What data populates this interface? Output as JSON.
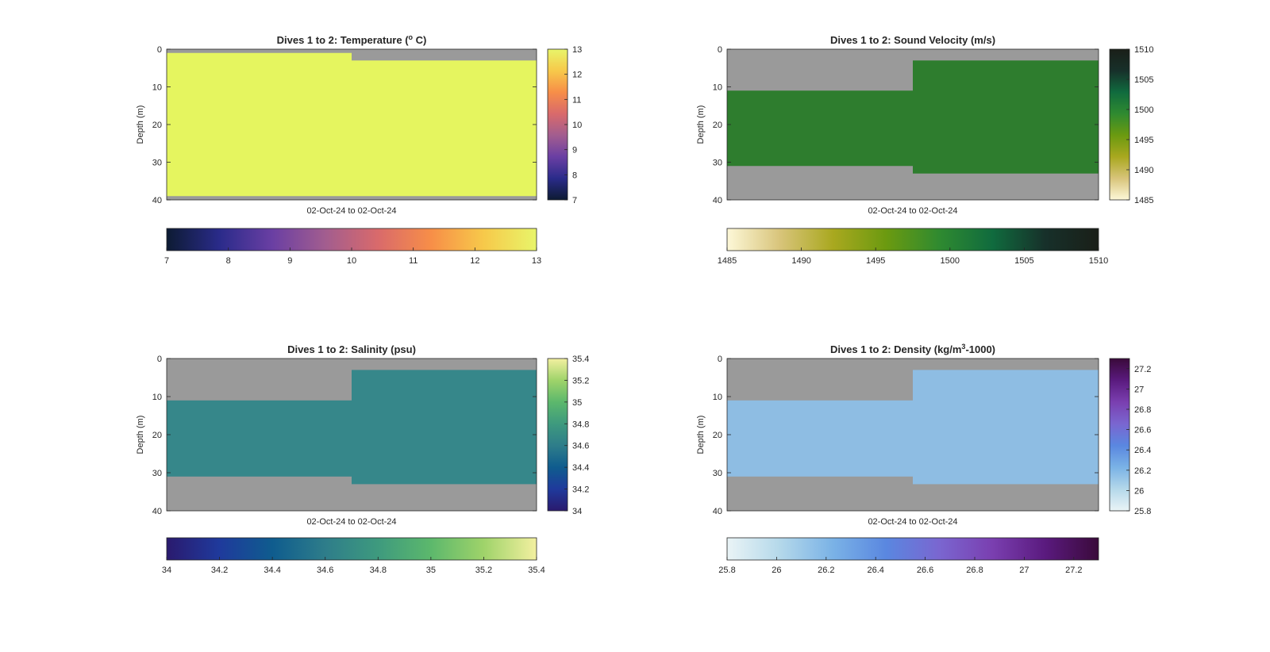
{
  "figure": {
    "background": "#ffffff"
  },
  "chart_data": [
    {
      "type": "heatmap",
      "title": "Dives 1 to 2: Temperature (°C)",
      "title_parts": {
        "pre": "Dives 1 to 2: Temperature (",
        "sup": "o",
        "post": " C)"
      },
      "xlabel": "02-Oct-24 to 02-Oct-24",
      "ylabel": "Depth (m)",
      "ylim": [
        0,
        40
      ],
      "y_ticks": [
        "0",
        "10",
        "20",
        "30",
        "40"
      ],
      "y_reversed": true,
      "missing_color": "#9a9a9a",
      "dives": [
        {
          "dive": 1,
          "depth_range": [
            1,
            39
          ],
          "value": 12.8,
          "color": "#e5f55f"
        },
        {
          "dive": 2,
          "depth_range": [
            3,
            39
          ],
          "value": 12.8,
          "color": "#e5f55f"
        }
      ],
      "colorbar": {
        "limits": [
          7,
          13
        ],
        "ticks": [
          "7",
          "8",
          "9",
          "10",
          "11",
          "12",
          "13"
        ],
        "colors": [
          "#0d1b33",
          "#2a2b8a",
          "#6a3fa3",
          "#a25d8f",
          "#d96a6b",
          "#f78e48",
          "#f7c94a",
          "#e8f56a"
        ]
      }
    },
    {
      "type": "heatmap",
      "title": "Dives 1 to 2: Sound Velocity (m/s)",
      "xlabel": "02-Oct-24 to 02-Oct-24",
      "ylabel": "Depth (m)",
      "ylim": [
        0,
        40
      ],
      "y_ticks": [
        "0",
        "10",
        "20",
        "30",
        "40"
      ],
      "y_reversed": true,
      "missing_color": "#9a9a9a",
      "dives": [
        {
          "dive": 1,
          "depth_range": [
            11,
            31
          ],
          "value": 1500.5,
          "color": "#2e7d2e"
        },
        {
          "dive": 2,
          "depth_range": [
            3,
            33
          ],
          "value": 1500.5,
          "color": "#2e7d2e"
        }
      ],
      "colorbar": {
        "limits": [
          1485,
          1510
        ],
        "ticks": [
          "1485",
          "1490",
          "1495",
          "1500",
          "1505",
          "1510"
        ],
        "colors": [
          "#fdf8d8",
          "#d8c47a",
          "#a9a81f",
          "#6b9a10",
          "#2f8a30",
          "#106b3e",
          "#17302a",
          "#1a1f18"
        ]
      }
    },
    {
      "type": "heatmap",
      "title": "Dives 1 to 2: Salinity (psu)",
      "xlabel": "02-Oct-24 to 02-Oct-24",
      "ylabel": "Depth (m)",
      "ylim": [
        0,
        40
      ],
      "y_ticks": [
        "0",
        "10",
        "20",
        "30",
        "40"
      ],
      "y_reversed": true,
      "missing_color": "#9a9a9a",
      "dives": [
        {
          "dive": 1,
          "depth_range": [
            11,
            31
          ],
          "value": 34.65,
          "color": "#36878a"
        },
        {
          "dive": 2,
          "depth_range": [
            3,
            33
          ],
          "value": 34.65,
          "color": "#36878a"
        }
      ],
      "colorbar": {
        "limits": [
          34,
          35.4
        ],
        "ticks": [
          "34",
          "34.2",
          "34.4",
          "34.6",
          "34.8",
          "35",
          "35.2",
          "35.4"
        ],
        "colors": [
          "#2a1a6e",
          "#1f3a9c",
          "#0f5c8e",
          "#2e7d8a",
          "#3e9a7e",
          "#5cb86c",
          "#9fd36a",
          "#f3f0a0"
        ]
      }
    },
    {
      "type": "heatmap",
      "title": "Dives 1 to 2: Density (kg/m³-1000)",
      "title_parts": {
        "pre": "Dives 1 to 2: Density (kg/m",
        "sup": "3",
        "post": "-1000)"
      },
      "xlabel": "02-Oct-24 to 02-Oct-24",
      "ylabel": "Depth (m)",
      "ylim": [
        0,
        40
      ],
      "y_ticks": [
        "0",
        "10",
        "20",
        "30",
        "40"
      ],
      "y_reversed": true,
      "missing_color": "#9a9a9a",
      "dives": [
        {
          "dive": 1,
          "depth_range": [
            11,
            31
          ],
          "value": 26.1,
          "color": "#8ebde3"
        },
        {
          "dive": 2,
          "depth_range": [
            3,
            33
          ],
          "value": 26.1,
          "color": "#8ebde3"
        }
      ],
      "colorbar": {
        "limits": [
          25.8,
          27.3
        ],
        "ticks": [
          "25.8",
          "26",
          "26.2",
          "26.4",
          "26.6",
          "26.8",
          "27",
          "27.2"
        ],
        "colors": [
          "#eaf4f6",
          "#b4d8ea",
          "#7ab2e6",
          "#5a87e0",
          "#7a66d0",
          "#7a3fb0",
          "#5a1a7e",
          "#3a0a3a"
        ]
      }
    }
  ]
}
